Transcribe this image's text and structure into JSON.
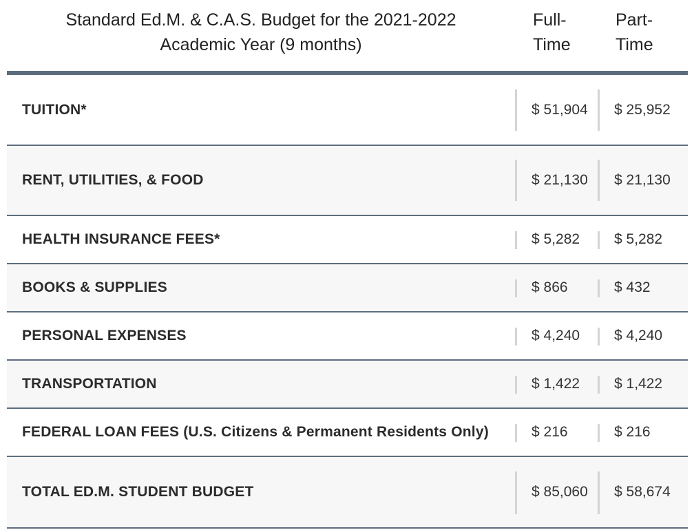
{
  "header": {
    "title_line1": "Standard Ed.M. & C.A.S. Budget for the 2021-2022",
    "title_line2": "Academic Year (9 months)",
    "col_full_line1": "Full-",
    "col_full_line2": "Time",
    "col_part_line1": "Part-",
    "col_part_line2": "Time"
  },
  "rows": [
    {
      "label": "TUITION*",
      "full_time": "$ 51,904",
      "part_time": "$ 25,952"
    },
    {
      "label": "RENT, UTILITIES, & FOOD",
      "full_time": "$ 21,130",
      "part_time": "$ 21,130"
    },
    {
      "label": "HEALTH INSURANCE FEES*",
      "full_time": "$ 5,282",
      "part_time": "$ 5,282"
    },
    {
      "label": "BOOKS & SUPPLIES",
      "full_time": "$ 866",
      "part_time": "$ 432"
    },
    {
      "label": "PERSONAL EXPENSES",
      "full_time": "$ 4,240",
      "part_time": "$ 4,240"
    },
    {
      "label": "TRANSPORTATION",
      "full_time": "$ 1,422",
      "part_time": "$ 1,422"
    },
    {
      "label": "FEDERAL LOAN FEES (U.S. Citizens & Permanent Residents Only)",
      "full_time": "$ 216",
      "part_time": "$ 216"
    },
    {
      "label": "TOTAL ED.M. STUDENT BUDGET",
      "full_time": "$ 85,060",
      "part_time": "$ 58,674"
    }
  ]
}
